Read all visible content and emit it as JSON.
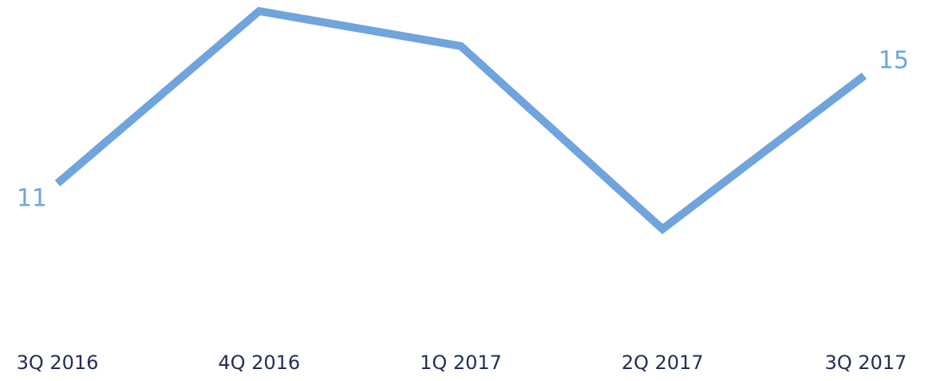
{
  "chart_data": {
    "type": "line",
    "categories": [
      "3Q 2016",
      "4Q 2016",
      "1Q 2017",
      "2Q 2017",
      "3Q 2017"
    ],
    "series": [
      {
        "color": "#6fa4dc",
        "values": [
          11,
          17.4,
          16.1,
          9.3,
          15
        ]
      }
    ],
    "ylim": [
      9,
      17.5
    ]
  }
}
